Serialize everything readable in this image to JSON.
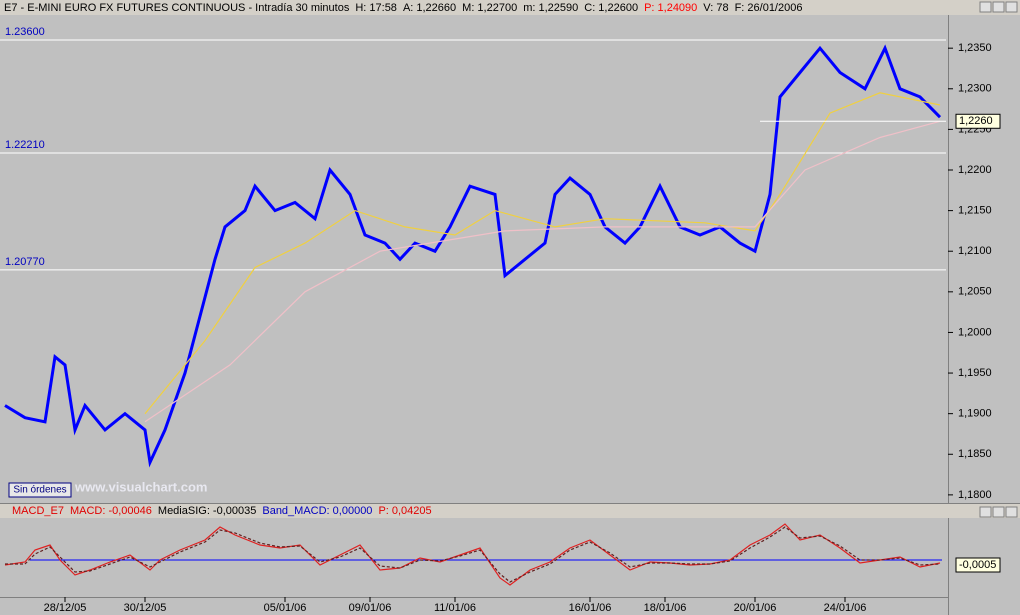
{
  "header": [
    "E7 - E-MINI EURO FX FUTURES CONTINUOUS - Intradía 30 minutos",
    "H: 17:58",
    "A: 1,22660",
    "M: 1,22700",
    "m: 1,22590",
    "C: 1,22600",
    "P: 1,24090",
    "V: 78",
    "F: 26/01/2006"
  ],
  "button": "Sin órdenes",
  "watermark": "www.visualchart.com",
  "chart_data": [
    {
      "type": "line",
      "xlim": [
        0,
        188
      ],
      "ylim": [
        1.179,
        1.2397
      ],
      "yticks": [
        {
          "value": 1.18,
          "label": "1,1800"
        },
        {
          "value": 1.185,
          "label": "1,1850"
        },
        {
          "value": 1.19,
          "label": "1,1900"
        },
        {
          "value": 1.195,
          "label": "1,1950"
        },
        {
          "value": 1.2,
          "label": "1,2000"
        },
        {
          "value": 1.205,
          "label": "1,2050"
        },
        {
          "value": 1.21,
          "label": "1,2100"
        },
        {
          "value": 1.215,
          "label": "1,2150"
        },
        {
          "value": 1.22,
          "label": "1,2200"
        },
        {
          "value": 1.225,
          "label": "1,2250"
        },
        {
          "value": 1.23,
          "label": "1,2300"
        },
        {
          "value": 1.235,
          "label": "1,2350"
        }
      ],
      "levels": [
        {
          "value": 1.236,
          "label": "1.23600"
        },
        {
          "value": 1.2221,
          "label": "1.22210"
        },
        {
          "value": 1.2077,
          "label": "1.20770"
        }
      ],
      "last": {
        "value": 1.226,
        "label": "1,2260"
      },
      "series": [
        {
          "color": "#0000ff",
          "x": [
            0,
            4,
            8,
            10,
            12,
            14,
            16,
            20,
            24,
            28,
            29,
            32,
            36,
            39,
            42,
            44,
            48,
            50,
            54,
            58,
            62,
            65,
            69,
            72,
            76,
            79,
            82,
            86,
            89,
            93,
            98,
            100,
            104,
            108,
            110,
            113,
            117,
            120,
            124,
            127,
            131,
            135,
            139,
            143,
            147,
            150,
            153,
            155,
            159,
            163,
            167,
            172,
            176,
            179,
            183,
            187
          ],
          "values": [
            1.191,
            1.1895,
            1.189,
            1.197,
            1.196,
            1.188,
            1.191,
            1.188,
            1.19,
            1.188,
            1.184,
            1.188,
            1.195,
            1.202,
            1.209,
            1.213,
            1.215,
            1.218,
            1.215,
            1.216,
            1.214,
            1.22,
            1.217,
            1.212,
            1.211,
            1.209,
            1.211,
            1.21,
            1.213,
            1.218,
            1.217,
            1.207,
            1.209,
            1.211,
            1.217,
            1.219,
            1.217,
            1.213,
            1.211,
            1.213,
            1.218,
            1.213,
            1.212,
            1.213,
            1.211,
            1.21,
            1.217,
            1.229,
            1.232,
            1.235,
            1.232,
            1.23,
            1.235,
            1.23,
            1.229,
            1.2265
          ]
        },
        {
          "color": "#f0d040",
          "x": [
            28,
            40,
            50,
            60,
            70,
            80,
            90,
            98,
            110,
            120,
            140,
            150,
            155,
            165,
            175,
            187
          ],
          "values": [
            1.19,
            1.199,
            1.208,
            1.211,
            1.215,
            1.213,
            1.212,
            1.215,
            1.213,
            1.214,
            1.2135,
            1.2125,
            1.217,
            1.227,
            1.2295,
            1.228
          ]
        },
        {
          "color": "#f0c0c8",
          "x": [
            28,
            45,
            60,
            75,
            90,
            100,
            120,
            140,
            150,
            160,
            175,
            187
          ],
          "values": [
            1.189,
            1.196,
            1.205,
            1.21,
            1.2115,
            1.2125,
            1.213,
            1.213,
            1.213,
            1.22,
            1.224,
            1.226
          ]
        }
      ]
    },
    {
      "type": "line",
      "title": [
        "MACD_E7",
        "MACD: -0,00046",
        "MediaSIG: -0,00035",
        "Band_MACD: 0,00000",
        "P: 0,04205"
      ],
      "xlim": [
        0,
        188
      ],
      "ylim": [
        -0.0043,
        0.005
      ],
      "xticks": [
        {
          "value": 12,
          "label": "28/12/05"
        },
        {
          "value": 28,
          "label": "30/12/05"
        },
        {
          "value": 56,
          "label": "05/01/06"
        },
        {
          "value": 73,
          "label": "09/01/06"
        },
        {
          "value": 90,
          "label": "11/01/06"
        },
        {
          "value": 117,
          "label": "16/01/06"
        },
        {
          "value": 132,
          "label": "18/01/06"
        },
        {
          "value": 150,
          "label": "20/01/06"
        },
        {
          "value": 168,
          "label": "24/01/06"
        }
      ],
      "zero": 0,
      "last": {
        "value": -0.0005,
        "label": "-0,0005"
      },
      "series": [
        {
          "color": "#e02020",
          "x": [
            0,
            4,
            6,
            9,
            11,
            14,
            17,
            21,
            25,
            29,
            31,
            35,
            40,
            43,
            46,
            51,
            55,
            59,
            63,
            67,
            71,
            75,
            79,
            83,
            87,
            91,
            95,
            99,
            101,
            105,
            109,
            113,
            117,
            121,
            125,
            129,
            133,
            137,
            141,
            145,
            149,
            153,
            156,
            159,
            163,
            167,
            171,
            175,
            179,
            183,
            187
          ],
          "values": [
            -0.0005,
            -0.0002,
            0.001,
            0.0015,
            0,
            -0.0015,
            -0.001,
            -0.0002,
            0.0005,
            -0.001,
            0,
            0.001,
            0.002,
            0.0033,
            0.0025,
            0.0015,
            0.0012,
            0.0015,
            -0.0005,
            0.0005,
            0.0015,
            -0.001,
            -0.0008,
            0.0002,
            -0.0002,
            0.0005,
            0.0012,
            -0.0018,
            -0.0025,
            -0.001,
            -0.0002,
            0.0012,
            0.002,
            0.0005,
            -0.001,
            -0.0002,
            -0.0003,
            -0.0005,
            -0.0004,
            0,
            0.0015,
            0.0025,
            0.0036,
            0.002,
            0.0025,
            0.0012,
            -0.0003,
            0,
            0.0003,
            -0.0007,
            -0.0003
          ]
        },
        {
          "color": "#602020",
          "dashed": true,
          "x": [
            0,
            4,
            6,
            9,
            11,
            14,
            17,
            21,
            25,
            29,
            31,
            35,
            40,
            43,
            46,
            51,
            55,
            59,
            63,
            67,
            71,
            75,
            79,
            83,
            87,
            91,
            95,
            99,
            101,
            105,
            109,
            113,
            117,
            121,
            125,
            129,
            133,
            137,
            141,
            145,
            149,
            153,
            156,
            159,
            163,
            167,
            171,
            175,
            179,
            183,
            187
          ],
          "values": [
            -0.0004,
            -0.0004,
            0.0006,
            0.0013,
            0.0003,
            -0.0012,
            -0.0011,
            -0.0004,
            0.0003,
            -0.0007,
            -0.0002,
            0.0008,
            0.0018,
            0.003,
            0.0027,
            0.0017,
            0.0013,
            0.0014,
            -0.0002,
            0.0003,
            0.0012,
            -0.0006,
            -0.0008,
            0,
            -0.0001,
            0.0004,
            0.001,
            -0.0014,
            -0.0022,
            -0.0012,
            -0.0004,
            0.001,
            0.0018,
            0.0007,
            -0.0007,
            -0.0003,
            -0.0003,
            -0.0004,
            -0.0004,
            -0.0001,
            0.0012,
            0.0023,
            0.0033,
            0.0022,
            0.0024,
            0.0014,
            0,
            0,
            0.0002,
            -0.0005,
            -0.0004
          ]
        }
      ]
    }
  ]
}
